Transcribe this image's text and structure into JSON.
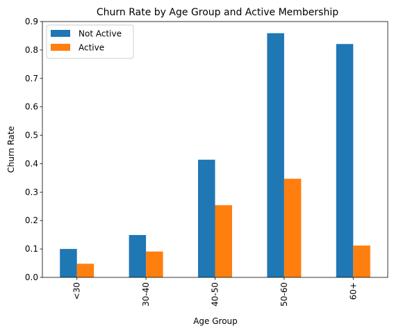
{
  "chart_data": {
    "type": "bar",
    "title": "Churn Rate by Age Group and Active Membership",
    "xlabel": "Age Group",
    "ylabel": "Churn Rate",
    "categories": [
      "<30",
      "30-40",
      "40-50",
      "50-60",
      "60+"
    ],
    "series": [
      {
        "name": "Not Active",
        "color": "#1f77b4",
        "values": [
          0.1,
          0.149,
          0.414,
          0.859,
          0.821
        ]
      },
      {
        "name": "Active",
        "color": "#ff7f0e",
        "values": [
          0.048,
          0.091,
          0.254,
          0.347,
          0.112
        ]
      }
    ],
    "ylim": [
      0,
      0.9
    ],
    "yticks": [
      0.0,
      0.1,
      0.2,
      0.3,
      0.4,
      0.5,
      0.6,
      0.7,
      0.8,
      0.9
    ],
    "ytick_labels": [
      "0.0",
      "0.1",
      "0.2",
      "0.3",
      "0.4",
      "0.5",
      "0.6",
      "0.7",
      "0.8",
      "0.9"
    ],
    "xtick_rotation": 90,
    "grid": false,
    "legend": "top-left"
  }
}
